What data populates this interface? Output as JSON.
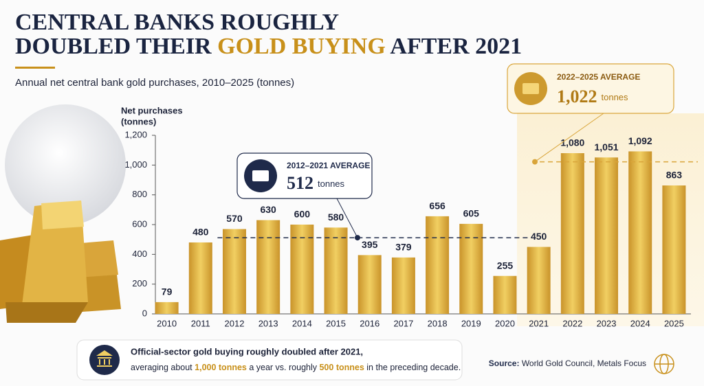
{
  "chart_data": {
    "type": "bar",
    "title_parts": [
      "CENTRAL BANKS ROUGHLY",
      "DOUBLED THEIR ",
      "GOLD BUYING",
      " AFTER 2021"
    ],
    "subtitle": "Annual net central bank gold purchases, 2010–2025 (tonnes)",
    "ylabel": [
      "Net purchases",
      "(tonnes)"
    ],
    "categories": [
      "2010",
      "2011",
      "2012",
      "2013",
      "2014",
      "2015",
      "2016",
      "2017",
      "2018",
      "2019",
      "2020",
      "2021",
      "2022",
      "2023",
      "2024",
      "2025"
    ],
    "values": [
      79,
      480,
      570,
      630,
      600,
      580,
      395,
      379,
      656,
      605,
      255,
      450,
      1080,
      1051,
      1092,
      863
    ],
    "value_labels": [
      "79",
      "480",
      "570",
      "630",
      "600",
      "580",
      "395",
      "379",
      "656",
      "605",
      "255",
      "450",
      "1,080",
      "1,051",
      "1,092",
      "863"
    ],
    "color": "#dfb23c",
    "ylim": [
      0,
      1200
    ],
    "yticks": [
      0,
      200,
      400,
      600,
      800,
      {
        "value": 1000,
        "label": "1,000"
      },
      {
        "value": 1200,
        "label": "1,200"
      }
    ],
    "grid": false,
    "averages": [
      {
        "title": "2012–2021 AVERAGE",
        "value": 512,
        "unit": "tonnes"
      },
      {
        "title": "2022–2025 AVERAGE",
        "value": 1022,
        "value_label": "1,022",
        "unit": "tonnes"
      }
    ],
    "note": {
      "line1": "Official-sector gold buying roughly doubled after 2021,",
      "line2_parts": [
        "averaging about ",
        "1,000 tonnes",
        " a year vs. roughly ",
        "500 tonnes",
        " in the preceding decade."
      ]
    },
    "source": [
      "Source:",
      " World Gold Council, Metals Focus"
    ]
  }
}
